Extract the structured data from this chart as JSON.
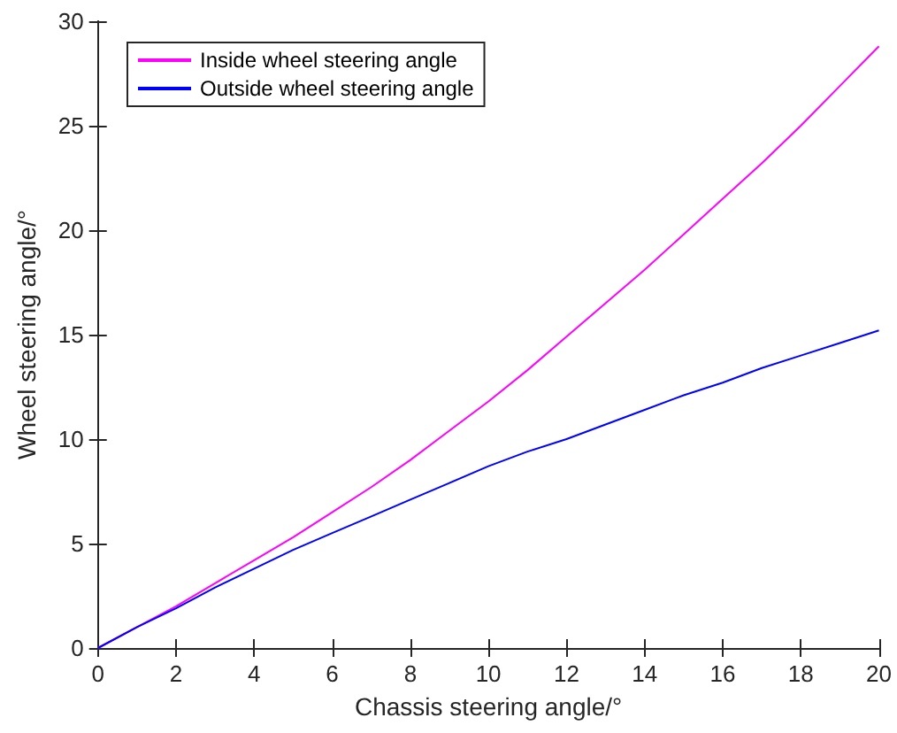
{
  "chart_data": {
    "type": "line",
    "xlabel": "Chassis steering angle/°",
    "ylabel": "Wheel steering angle/°",
    "x": [
      0,
      1,
      2,
      3,
      4,
      5,
      6,
      7,
      8,
      9,
      10,
      11,
      12,
      13,
      14,
      15,
      16,
      17,
      18,
      19,
      20
    ],
    "series": [
      {
        "name": "Inside wheel steering angle",
        "color": "#ff00ff",
        "values": [
          0,
          1.0,
          2.0,
          3.1,
          4.2,
          5.3,
          6.5,
          7.7,
          9.0,
          10.4,
          11.8,
          13.3,
          14.9,
          16.5,
          18.1,
          19.8,
          21.5,
          23.2,
          25.0,
          26.9,
          28.8
        ]
      },
      {
        "name": "Outside wheel steering angle",
        "color": "#0000ff",
        "values": [
          0,
          1.0,
          1.9,
          2.9,
          3.8,
          4.7,
          5.5,
          6.3,
          7.1,
          7.9,
          8.7,
          9.4,
          10.0,
          10.7,
          11.4,
          12.1,
          12.7,
          13.4,
          14.0,
          14.6,
          15.2
        ]
      }
    ],
    "xlim": [
      0,
      20
    ],
    "xticks": [
      0,
      2,
      4,
      6,
      8,
      10,
      12,
      14,
      16,
      18,
      20
    ],
    "ylim": [
      0,
      30
    ],
    "yticks": [
      0,
      5,
      10,
      15,
      20,
      25,
      30
    ],
    "grid": false,
    "legend": "top left",
    "marker": "none",
    "line_style": "solid"
  }
}
